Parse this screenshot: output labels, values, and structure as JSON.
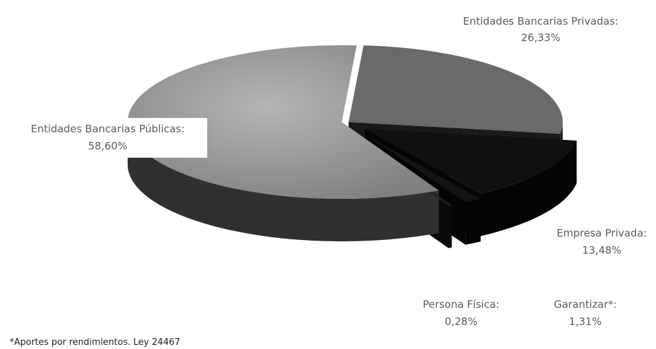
{
  "chart_data": {
    "type": "pie",
    "style": "3d-exploded",
    "slices": [
      {
        "name": "Entidades Bancarias Públicas:",
        "value": 58.6,
        "value_label": "58,60%",
        "color": "#8a8a8a",
        "side_color": "#303030"
      },
      {
        "name": "Entidades Bancarias Privadas:",
        "value": 26.33,
        "value_label": "26,33%",
        "color": "#6a6a6a",
        "side_color": "#1a1a1a"
      },
      {
        "name": "Empresa Privada:",
        "value": 13.48,
        "value_label": "13,48%",
        "color": "#111111",
        "side_color": "#050505"
      },
      {
        "name": "Garantizar*:",
        "value": 1.31,
        "value_label": "1,31%",
        "color": "#151515",
        "side_color": "#050505"
      },
      {
        "name": "Persona Física:",
        "value": 0.28,
        "value_label": "0,28%",
        "color": "#222222",
        "side_color": "#0a0a0a"
      }
    ],
    "footnote": "*Aportes por rendimientos. Ley 24467"
  }
}
